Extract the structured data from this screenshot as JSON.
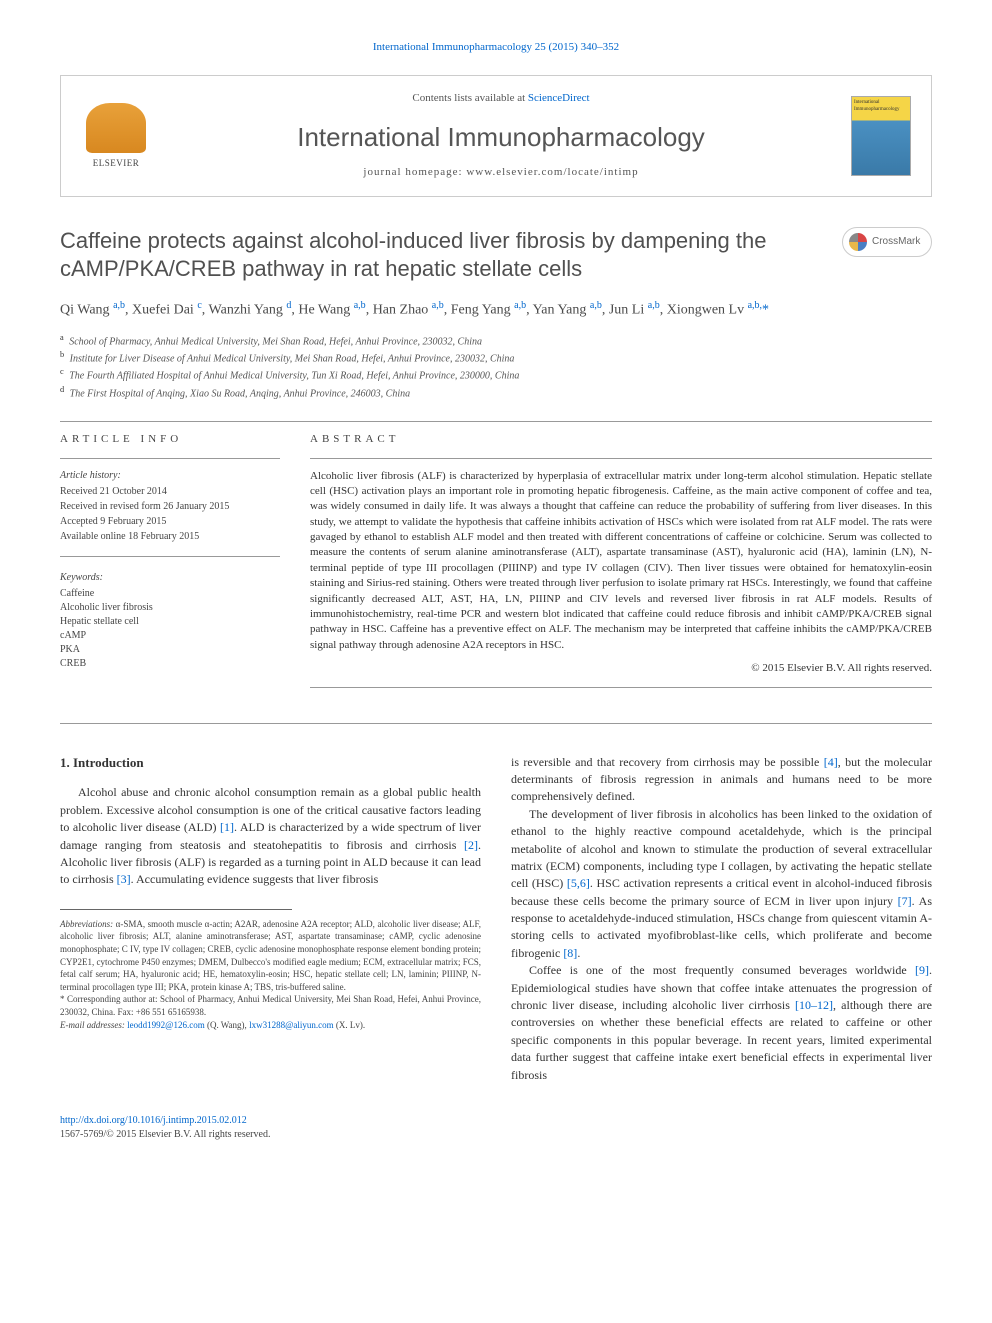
{
  "top_link": "International Immunopharmacology 25 (2015) 340–352",
  "header": {
    "elsevier_label": "ELSEVIER",
    "contents_prefix": "Contents lists available at ",
    "contents_link": "ScienceDirect",
    "journal_title": "International Immunopharmacology",
    "homepage_prefix": "journal homepage: ",
    "homepage": "www.elsevier.com/locate/intimp",
    "cover_label": "International Immunopharmacology"
  },
  "article": {
    "title": "Caffeine protects against alcohol-induced liver fibrosis by dampening the cAMP/PKA/CREB pathway in rat hepatic stellate cells",
    "crossmark": "CrossMark",
    "authors_html": "Qi Wang <sup>a,b</sup>, Xuefei Dai <sup>c</sup>, Wanzhi Yang <sup>d</sup>, He Wang <sup>a,b</sup>, Han Zhao <sup>a,b</sup>, Feng Yang <sup>a,b</sup>, Yan Yang <sup>a,b</sup>, Jun Li <sup>a,b</sup>, Xiongwen Lv <sup>a,b,</sup><span class='star'>*</span>",
    "affiliations": [
      {
        "sup": "a",
        "text": "School of Pharmacy, Anhui Medical University, Mei Shan Road, Hefei, Anhui Province, 230032, China"
      },
      {
        "sup": "b",
        "text": "Institute for Liver Disease of Anhui Medical University, Mei Shan Road, Hefei, Anhui Province, 230032, China"
      },
      {
        "sup": "c",
        "text": "The Fourth Affiliated Hospital of Anhui Medical University, Tun Xi Road, Hefei, Anhui Province, 230000, China"
      },
      {
        "sup": "d",
        "text": "The First Hospital of Anqing, Xiao Su Road, Anqing, Anhui Province, 246003, China"
      }
    ]
  },
  "info": {
    "heading": "ARTICLE INFO",
    "history_label": "Article history:",
    "history": [
      "Received 21 October 2014",
      "Received in revised form 26 January 2015",
      "Accepted 9 February 2015",
      "Available online 18 February 2015"
    ],
    "keywords_label": "Keywords:",
    "keywords": [
      "Caffeine",
      "Alcoholic liver fibrosis",
      "Hepatic stellate cell",
      "cAMP",
      "PKA",
      "CREB"
    ]
  },
  "abstract": {
    "heading": "ABSTRACT",
    "text": "Alcoholic liver fibrosis (ALF) is characterized by hyperplasia of extracellular matrix under long-term alcohol stimulation. Hepatic stellate cell (HSC) activation plays an important role in promoting hepatic fibrogenesis. Caffeine, as the main active component of coffee and tea, was widely consumed in daily life. It was always a thought that caffeine can reduce the probability of suffering from liver diseases. In this study, we attempt to validate the hypothesis that caffeine inhibits activation of HSCs which were isolated from rat ALF model. The rats were gavaged by ethanol to establish ALF model and then treated with different concentrations of caffeine or colchicine. Serum was collected to measure the contents of serum alanine aminotransferase (ALT), aspartate transaminase (AST), hyaluronic acid (HA), laminin (LN), N-terminal peptide of type III procollagen (PIIINP) and type IV collagen (CIV). Then liver tissues were obtained for hematoxylin-eosin staining and Sirius-red staining. Others were treated through liver perfusion to isolate primary rat HSCs. Interestingly, we found that caffeine significantly decreased ALT, AST, HA, LN, PIIINP and CIV levels and reversed liver fibrosis in rat ALF models. Results of immunohistochemistry, real-time PCR and western blot indicated that caffeine could reduce fibrosis and inhibit cAMP/PKA/CREB signal pathway in HSC. Caffeine has a preventive effect on ALF. The mechanism may be interpreted that caffeine inhibits the cAMP/PKA/CREB signal pathway through adenosine A2A receptors in HSC.",
    "copyright": "© 2015 Elsevier B.V. All rights reserved."
  },
  "body": {
    "section_heading": "1. Introduction",
    "left_p1": "Alcohol abuse and chronic alcohol consumption remain as a global public health problem. Excessive alcohol consumption is one of the critical causative factors leading to alcoholic liver disease (ALD) [1]. ALD is characterized by a wide spectrum of liver damage ranging from steatosis and steatohepatitis to fibrosis and cirrhosis [2]. Alcoholic liver fibrosis (ALF) is regarded as a turning point in ALD because it can lead to cirrhosis [3]. Accumulating evidence suggests that liver fibrosis",
    "right_p1": "is reversible and that recovery from cirrhosis may be possible [4], but the molecular determinants of fibrosis regression in animals and humans need to be more comprehensively defined.",
    "right_p2": "The development of liver fibrosis in alcoholics has been linked to the oxidation of ethanol to the highly reactive compound acetaldehyde, which is the principal metabolite of alcohol and known to stimulate the production of several extracellular matrix (ECM) components, including type I collagen, by activating the hepatic stellate cell (HSC) [5,6]. HSC activation represents a critical event in alcohol-induced fibrosis because these cells become the primary source of ECM in liver upon injury [7]. As response to acetaldehyde-induced stimulation, HSCs change from quiescent vitamin A-storing cells to activated myofibroblast-like cells, which proliferate and become fibrogenic [8].",
    "right_p3": "Coffee is one of the most frequently consumed beverages worldwide [9]. Epidemiological studies have shown that coffee intake attenuates the progression of chronic liver disease, including alcoholic liver cirrhosis [10–12], although there are controversies on whether these beneficial effects are related to caffeine or other specific components in this popular beverage. In recent years, limited experimental data further suggest that caffeine intake exert beneficial effects in experimental liver fibrosis"
  },
  "footnotes": {
    "abbrev_label": "Abbreviations:",
    "abbrev_text": " α-SMA, smooth muscle α-actin; A2AR, adenosine A2A receptor; ALD, alcoholic liver disease; ALF, alcoholic liver fibrosis; ALT, alanine aminotransferase; AST, aspartate transaminase; cAMP, cyclic adenosine monophosphate; C IV, type IV collagen; CREB, cyclic adenosine monophosphate response element bonding protein; CYP2E1, cytochrome P450 enzymes; DMEM, Dulbecco's modified eagle medium; ECM, extracellular matrix; FCS, fetal calf serum; HA, hyaluronic acid; HE, hematoxylin-eosin; HSC, hepatic stellate cell; LN, laminin; PIIINP, N-terminal procollagen type III; PKA, protein kinase A; TBS, tris-buffered saline.",
    "corr_label": "* Corresponding author at: School of Pharmacy, Anhui Medical University, Mei Shan Road, Hefei, Anhui Province, 230032, China. Fax: +86 551 65165938.",
    "email_label": "E-mail addresses: ",
    "email1": "leodd1992@126.com",
    "email1_who": " (Q. Wang), ",
    "email2": "lxw31288@aliyun.com",
    "email2_who": " (X. Lv)."
  },
  "footer": {
    "doi": "http://dx.doi.org/10.1016/j.intimp.2015.02.012",
    "issn": "1567-5769/© 2015 Elsevier B.V. All rights reserved."
  },
  "colors": {
    "link": "#0066cc",
    "text": "#333333",
    "heading": "#505050",
    "elsevier_orange": "#e8a13a"
  }
}
